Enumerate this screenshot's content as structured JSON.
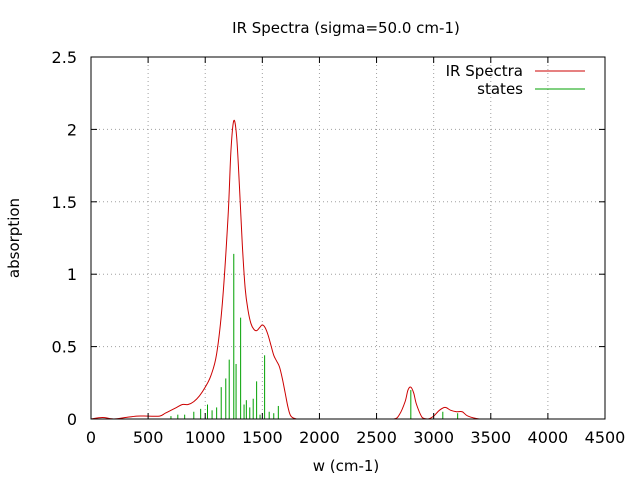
{
  "chart_data": {
    "type": "line",
    "title": "IR Spectra (sigma=50.0 cm-1)",
    "xlabel": "w (cm-1)",
    "ylabel": "absorption",
    "xlim": [
      0,
      4500
    ],
    "ylim": [
      0,
      2.5
    ],
    "xticks": [
      0,
      500,
      1000,
      1500,
      2000,
      2500,
      3000,
      3500,
      4000,
      4500
    ],
    "yticks": [
      0,
      0.5,
      1,
      1.5,
      2,
      2.5
    ],
    "xtick_labels": [
      "0",
      "500",
      "1000",
      "1500",
      "2000",
      "2500",
      "3000",
      "3500",
      "4000",
      "4500"
    ],
    "ytick_labels": [
      "0",
      "0.5",
      "1",
      "1.5",
      "2",
      "2.5"
    ],
    "grid": true,
    "legend_position": "top-right",
    "colors": {
      "spectrum": "#cc0000",
      "states": "#00a000",
      "grid": "#a0a0a0"
    },
    "series": [
      {
        "name": "IR Spectra",
        "style": "line",
        "x": [
          0,
          100,
          200,
          300,
          400,
          500,
          600,
          650,
          700,
          750,
          800,
          850,
          900,
          950,
          1000,
          1050,
          1100,
          1150,
          1200,
          1225,
          1250,
          1275,
          1300,
          1325,
          1350,
          1375,
          1400,
          1425,
          1450,
          1475,
          1500,
          1525,
          1550,
          1575,
          1600,
          1625,
          1650,
          1675,
          1700,
          1725,
          1750,
          1800,
          1900,
          2000,
          2500,
          2650,
          2700,
          2750,
          2775,
          2800,
          2825,
          2850,
          2900,
          2950,
          3000,
          3050,
          3100,
          3150,
          3200,
          3250,
          3300,
          3400,
          3500,
          4000,
          4500
        ],
        "y": [
          0.0,
          0.01,
          0.0,
          0.01,
          0.02,
          0.02,
          0.02,
          0.04,
          0.06,
          0.08,
          0.1,
          0.1,
          0.12,
          0.16,
          0.22,
          0.3,
          0.45,
          0.8,
          1.4,
          1.85,
          2.06,
          1.95,
          1.6,
          1.2,
          0.9,
          0.75,
          0.66,
          0.62,
          0.61,
          0.63,
          0.65,
          0.63,
          0.58,
          0.51,
          0.44,
          0.4,
          0.36,
          0.28,
          0.18,
          0.08,
          0.02,
          0.0,
          0.0,
          0.0,
          0.0,
          0.0,
          0.03,
          0.12,
          0.2,
          0.22,
          0.18,
          0.1,
          0.01,
          0.0,
          0.02,
          0.06,
          0.08,
          0.06,
          0.05,
          0.05,
          0.02,
          0.0,
          0.0,
          0.0,
          0.0
        ]
      },
      {
        "name": "states",
        "style": "impulses",
        "x": [
          700,
          760,
          820,
          900,
          960,
          1020,
          1060,
          1100,
          1140,
          1180,
          1210,
          1250,
          1270,
          1310,
          1340,
          1360,
          1390,
          1420,
          1450,
          1480,
          1520,
          1560,
          1600,
          1640,
          2800,
          3080,
          3210
        ],
        "y": [
          0.02,
          0.03,
          0.03,
          0.05,
          0.07,
          0.1,
          0.06,
          0.08,
          0.22,
          0.28,
          0.41,
          1.14,
          0.38,
          0.7,
          0.1,
          0.13,
          0.08,
          0.14,
          0.26,
          0.03,
          0.44,
          0.05,
          0.04,
          0.09,
          0.2,
          0.05,
          0.04
        ]
      }
    ]
  }
}
